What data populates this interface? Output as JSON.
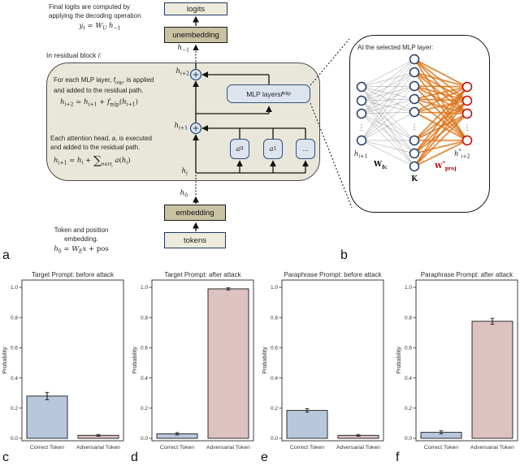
{
  "colors": {
    "block_fill": "#e9e7d9",
    "navy_border": "#1f3c61",
    "tan_fill": "#c8c1a2",
    "cream_fill": "#edebdc",
    "blue_box_fill": "#dde4ee",
    "node_blue_stroke": "#1f3864",
    "node_red_stroke": "#cc0000",
    "edge_gray": "#8c8c8c",
    "edge_orange": "#d96b12",
    "bar_blue": "#b8c7dc",
    "bar_pink": "#dec1c1",
    "wproj_red": "#c00000"
  },
  "top_note": {
    "line1": "Final logits are computed by",
    "line2": "applying the decoding operation",
    "equation_html": "<i>y</i><sub><i>t</i></sub> = <i>W</i><sub><i>U</i></sub> <i>h</i><sub>−1</sub>"
  },
  "pipeline": {
    "logits": "logits",
    "unembedding": "unembedding",
    "embedding": "embedding",
    "tokens": "tokens",
    "h_minus1_html": "<i>h</i><sub>−1</sub>",
    "h0_html": "<i>h</i><sub>0</sub>"
  },
  "residual_block": {
    "heading_html": "In residual block <i>i</i>:",
    "mlp_note": {
      "line1_html": "For each MLP layer, <i>f</i><sub>mlp</sub>, is applied",
      "line2": "and added to the residual path.",
      "equation_html": "<i>h</i><sub><i>i</i>+2</sub> = <i>h</i><sub><i>i</i>+1</sub> + <i>f</i><sub>mlp</sub>(<i>h</i><sub><i>i</i>+1</sub>)"
    },
    "attn_note": {
      "line1_html": "Each attention head, <i>a</i>, is executed",
      "line2": "and added to the residual path.",
      "equation_html": "<i>h</i><sub><i>i</i>+1</sub> = <i>h</i><sub><i>i</i></sub> + <span class='sum'>∑</span><span class='sumsub'><i>h</i>∈<i>H</i><sub><i>i</i></sub></span> <i>a</i>(<i>h</i><sub><i>i</i></sub>)"
    },
    "labels": {
      "h_i2_html": "<i>h</i><sub><i>i</i>+2</sub>",
      "h_i1_html": "<i>h</i><sub><i>i</i>+1</sub>",
      "h_i_html": "<i>h</i><sub><i>i</i></sub>",
      "mlp_box_html": "MLP layers <i>f</i><sub>mlp</sub>",
      "head0_html": "<i>a</i><sub>0</sub>",
      "head1_html": "<i>a</i><sub>1</sub>",
      "head_more": "..."
    }
  },
  "embed_note": {
    "line1": "Token and position embedding.",
    "equation_html": "<i>h</i><sub>0</sub> = <i>W</i><sub><i>E</i></sub><i>x</i> + pos"
  },
  "mlp_panel": {
    "title": "At the selected MLP layer:",
    "label_input_html": "<i>h</i><sub><i>i</i>+1</sub>",
    "label_wfc_html": "W<sub>fc</sub>",
    "label_k": "K",
    "label_wproj_html": "W<sup>*</sup><sub>proj</sub>",
    "label_output_html": "<i>h</i><sup>*</sup><sub><i>i</i>+2</sub>",
    "input_nodes_shown": 4,
    "hidden_nodes_shown": 8,
    "output_nodes_shown": 4
  },
  "panel_labels": {
    "a": "a",
    "b": "b",
    "c": "c",
    "d": "d",
    "e": "e",
    "f": "f"
  },
  "chart_data": [
    {
      "type": "bar",
      "title": "Target Prompt: before attack",
      "ylabel": "Probability",
      "categories": [
        "Correct Token",
        "Adversarial Token"
      ],
      "values": [
        0.28,
        0.02
      ],
      "errors": [
        0.025,
        0.006
      ],
      "bar_colors": [
        "#b8c7dc",
        "#dec1c1"
      ],
      "ylim": [
        0,
        1.05
      ],
      "yticks": [
        0.0,
        0.2,
        0.4,
        0.6,
        0.8,
        1.0
      ],
      "grid": false,
      "legend": false
    },
    {
      "type": "bar",
      "title": "Target Prompt: after attack",
      "ylabel": "Probability",
      "categories": [
        "Correct Token",
        "Adversarial Token"
      ],
      "values": [
        0.03,
        0.99
      ],
      "errors": [
        0.008,
        0.008
      ],
      "bar_colors": [
        "#b8c7dc",
        "#dec1c1"
      ],
      "ylim": [
        0,
        1.05
      ],
      "yticks": [
        0.0,
        0.2,
        0.4,
        0.6,
        0.8,
        1.0
      ],
      "grid": false,
      "legend": false
    },
    {
      "type": "bar",
      "title": "Paraphrase Prompt: before attack",
      "ylabel": "Probability",
      "categories": [
        "Correct Token",
        "Adversarial Token"
      ],
      "values": [
        0.185,
        0.02
      ],
      "errors": [
        0.012,
        0.006
      ],
      "bar_colors": [
        "#b8c7dc",
        "#dec1c1"
      ],
      "ylim": [
        0,
        1.05
      ],
      "yticks": [
        0.0,
        0.2,
        0.4,
        0.6,
        0.8,
        1.0
      ],
      "grid": false,
      "legend": false
    },
    {
      "type": "bar",
      "title": "Paraphrase Prompt: after attack",
      "ylabel": "Probability",
      "categories": [
        "Correct Token",
        "Adversarial Token"
      ],
      "values": [
        0.04,
        0.775
      ],
      "errors": [
        0.01,
        0.02
      ],
      "bar_colors": [
        "#b8c7dc",
        "#dec1c1"
      ],
      "ylim": [
        0,
        1.05
      ],
      "yticks": [
        0.0,
        0.2,
        0.4,
        0.6,
        0.8,
        1.0
      ],
      "grid": false,
      "legend": false
    }
  ]
}
